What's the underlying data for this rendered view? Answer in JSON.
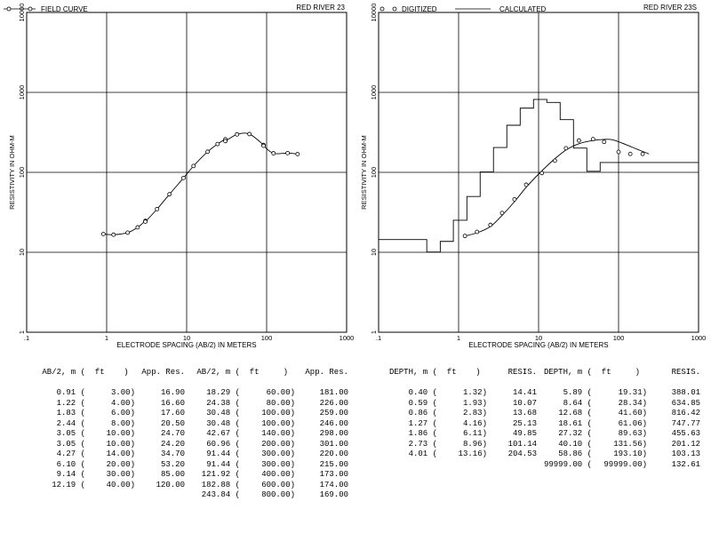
{
  "chart_data": [
    {
      "type": "line",
      "title": "RED RIVER 23",
      "legend": [
        "FIELD CURVE"
      ],
      "legend_placement": "top-left",
      "xlabel": "ELECTRODE SPACING (AB/2) IN METERS",
      "ylabel": "RESISTIVITY IN OHM-M",
      "xscale": "log",
      "yscale": "log",
      "xlim": [
        0.1,
        1000
      ],
      "ylim": [
        1,
        10000
      ],
      "x_ticks": [
        ".1",
        "1",
        "10",
        "100",
        "1000"
      ],
      "y_ticks": [
        "1",
        "10",
        "100",
        "1000",
        "10000"
      ],
      "grid": true,
      "series": [
        {
          "name": "FIELD CURVE",
          "x": [
            0.91,
            1.22,
            1.83,
            2.44,
            3.05,
            3.05,
            4.27,
            6.1,
            9.14,
            12.19,
            18.29,
            24.38,
            30.48,
            30.48,
            42.67,
            60.96,
            91.44,
            91.44,
            121.92,
            182.88,
            243.84
          ],
          "y": [
            16.9,
            16.6,
            17.6,
            20.5,
            24.7,
            24.2,
            34.7,
            53.2,
            85.0,
            120.0,
            181.0,
            226.0,
            259.0,
            246.0,
            298.0,
            301.0,
            220.0,
            215.0,
            173.0,
            174.0,
            169.0
          ]
        }
      ]
    },
    {
      "type": "line",
      "title": "RED RIVER 23S",
      "legend": [
        "DIGITIZED",
        "CALCULATED"
      ],
      "legend_placement": "top-left",
      "xlabel": "ELECTRODE SPACING (AB/2) IN METERS",
      "ylabel": "RESISTIVITY IN OHM-M",
      "xscale": "log",
      "yscale": "log",
      "xlim": [
        0.1,
        1000
      ],
      "ylim": [
        1,
        10000
      ],
      "x_ticks": [
        ".1",
        "1",
        "10",
        "100",
        "1000"
      ],
      "y_ticks": [
        "1",
        "10",
        "100",
        "1000",
        "10000"
      ],
      "grid": true,
      "series": [
        {
          "name": "DIGITIZED",
          "x": [
            1.2,
            1.7,
            2.5,
            3.5,
            5,
            7,
            11,
            16,
            22,
            32,
            48,
            66,
            100,
            140,
            200
          ],
          "y": [
            16,
            18,
            22,
            31,
            46,
            70,
            98,
            140,
            200,
            250,
            260,
            240,
            180,
            170,
            170
          ]
        },
        {
          "name": "CALCULATED",
          "x": [
            1.2,
            1.7,
            2.5,
            3.5,
            5,
            7,
            10,
            15,
            22,
            32,
            48,
            66,
            85,
            120,
            170,
            240
          ],
          "y": [
            16,
            17.5,
            21,
            29,
            43,
            65,
            95,
            140,
            190,
            228,
            250,
            258,
            255,
            225,
            195,
            170
          ]
        },
        {
          "name": "LAYER MODEL",
          "depth": [
            0.4,
            0.59,
            0.86,
            1.27,
            1.86,
            2.73,
            4.01,
            5.89,
            8.64,
            12.68,
            18.61,
            27.32,
            40.1,
            58.86
          ],
          "resistivity": [
            14.41,
            10.07,
            13.68,
            25.13,
            49.85,
            101.14,
            204.53,
            388.01,
            634.85,
            816.42,
            747.77,
            455.63,
            201.12,
            103.13,
            132.61
          ]
        }
      ]
    }
  ],
  "left_table": {
    "headers": [
      "AB/2, m (",
      "ft",
      ")",
      "App. Res.",
      "AB/2, m (",
      "ft",
      ")",
      "App. Res."
    ],
    "rows": [
      [
        "0.91 (",
        "3.00)",
        "16.90",
        "18.29 (",
        "60.00)",
        "181.00"
      ],
      [
        "1.22 (",
        "4.00)",
        "16.60",
        "24.38 (",
        "80.00)",
        "226.00"
      ],
      [
        "1.83 (",
        "6.00)",
        "17.60",
        "30.48 (",
        "100.00)",
        "259.00"
      ],
      [
        "2.44 (",
        "8.00)",
        "20.50",
        "30.48 (",
        "100.00)",
        "246.00"
      ],
      [
        "3.05 (",
        "10.00)",
        "24.70",
        "42.67 (",
        "140.00)",
        "298.00"
      ],
      [
        "3.05 (",
        "10.00)",
        "24.20",
        "60.96 (",
        "200.00)",
        "301.00"
      ],
      [
        "4.27 (",
        "14.00)",
        "34.70",
        "91.44 (",
        "300.00)",
        "220.00"
      ],
      [
        "6.10 (",
        "20.00)",
        "53.20",
        "91.44 (",
        "300.00)",
        "215.00"
      ],
      [
        "9.14 (",
        "30.00)",
        "85.00",
        "121.92 (",
        "400.00)",
        "173.00"
      ],
      [
        "12.19 (",
        "40.00)",
        "120.00",
        "182.88 (",
        "600.00)",
        "174.00"
      ],
      [
        "",
        "",
        "",
        "243.84 (",
        "800.00)",
        "169.00"
      ]
    ]
  },
  "right_table": {
    "headers": [
      "DEPTH, m (",
      "ft",
      ")",
      "RESIS.",
      "DEPTH, m (",
      "ft",
      ")",
      "RESIS."
    ],
    "rows": [
      [
        "0.40 (",
        "1.32)",
        "14.41",
        "5.89 (",
        "19.31)",
        "388.01"
      ],
      [
        "0.59 (",
        "1.93)",
        "10.07",
        "8.64 (",
        "28.34)",
        "634.85"
      ],
      [
        "0.86 (",
        "2.83)",
        "13.68",
        "12.68 (",
        "41.60)",
        "816.42"
      ],
      [
        "1.27 (",
        "4.16)",
        "25.13",
        "18.61 (",
        "61.06)",
        "747.77"
      ],
      [
        "1.86 (",
        "6.11)",
        "49.85",
        "27.32 (",
        "89.63)",
        "455.63"
      ],
      [
        "2.73 (",
        "8.96)",
        "101.14",
        "40.10 (",
        "131.56)",
        "201.12"
      ],
      [
        "4.01 (",
        "13.16)",
        "204.53",
        "58.86 (",
        "193.10)",
        "103.13"
      ],
      [
        "",
        "",
        "",
        "99999.00 (",
        "99999.00)",
        "132.61"
      ]
    ]
  }
}
